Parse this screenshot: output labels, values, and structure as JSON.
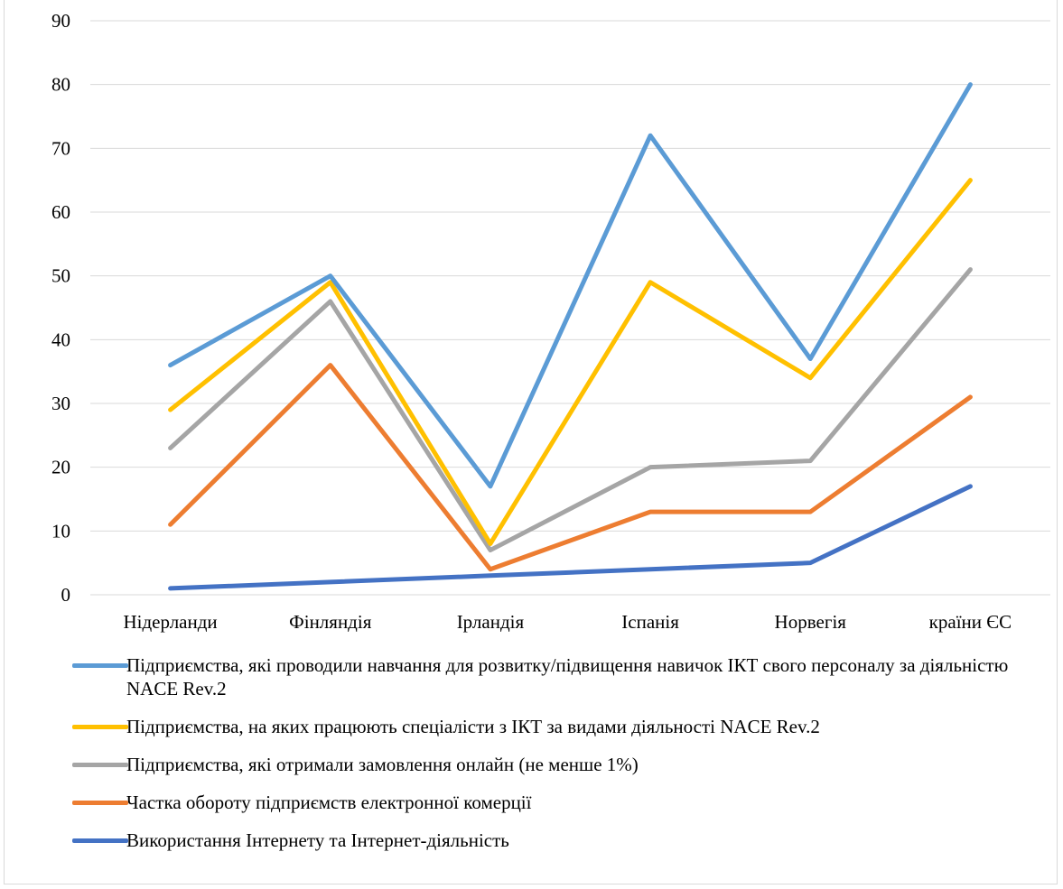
{
  "chart_data": {
    "type": "line",
    "categories": [
      "Нідерланди",
      "Фінляндія",
      "Ірландія",
      "Іспанія",
      "Норвегія",
      "країни ЄС"
    ],
    "ylim": [
      0,
      90
    ],
    "yticks": [
      "0",
      "10",
      "20",
      "30",
      "40",
      "50",
      "60",
      "70",
      "80",
      "90"
    ],
    "grid": true,
    "legend_position": "bottom",
    "series": [
      {
        "name": "Підприємства, які проводили навчання для розвитку/підвищення навичок ІКТ свого персоналу за діяльністю NACE Rev.2",
        "color": "#5b9bd5",
        "values": [
          36,
          50,
          17,
          72,
          37,
          80
        ]
      },
      {
        "name": "Підприємства, на яких працюють спеціалісти з ІКТ за видами діяльності NACE Rev.2",
        "color": "#ffc000",
        "values": [
          29,
          49,
          8,
          49,
          34,
          65
        ]
      },
      {
        "name": "Підприємства, які отримали замовлення онлайн (не менше 1%)",
        "color": "#a5a5a5",
        "values": [
          23,
          46,
          7,
          20,
          21,
          51
        ]
      },
      {
        "name": "Частка обороту підприємств електронної комерції",
        "color": "#ed7d31",
        "values": [
          11,
          36,
          4,
          13,
          13,
          31
        ]
      },
      {
        "name": "Використання Інтернету та Інтернет-діяльність",
        "color": "#4472c4",
        "values": [
          1,
          2,
          3,
          4,
          5,
          17
        ]
      }
    ]
  }
}
